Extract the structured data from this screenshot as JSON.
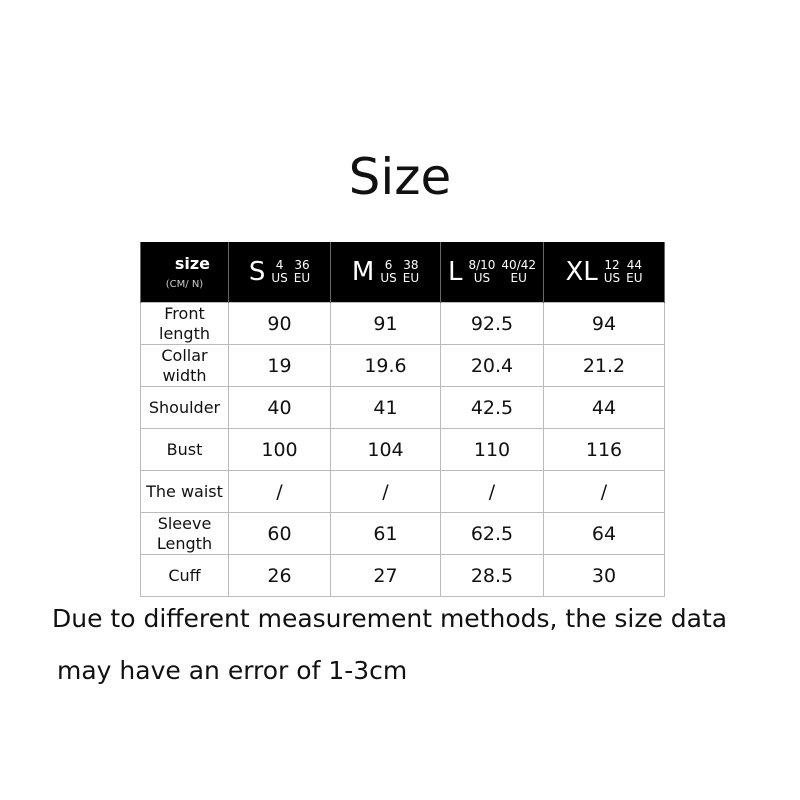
{
  "title": "Size",
  "header": {
    "label": "size",
    "unit": "(CM/ N)",
    "sizes": [
      {
        "name": "S",
        "us": "4",
        "eu": "36"
      },
      {
        "name": "M",
        "us": "6",
        "eu": "38"
      },
      {
        "name": "L",
        "us": "8/10",
        "eu": "40/42"
      },
      {
        "name": "XL",
        "us": "12",
        "eu": "44"
      }
    ],
    "us_label": "US",
    "eu_label": "EU"
  },
  "rows": [
    {
      "label": "Front length",
      "values": [
        "90",
        "91",
        "92.5",
        "94"
      ]
    },
    {
      "label": "Collar width",
      "values": [
        "19",
        "19.6",
        "20.4",
        "21.2"
      ]
    },
    {
      "label": "Shoulder",
      "values": [
        "40",
        "41",
        "42.5",
        "44"
      ]
    },
    {
      "label": "Bust",
      "values": [
        "100",
        "104",
        "110",
        "116"
      ]
    },
    {
      "label": "The waist",
      "values": [
        "/",
        "/",
        "/",
        "/"
      ]
    },
    {
      "label": "Sleeve Length",
      "values": [
        "60",
        "61",
        "62.5",
        "64"
      ]
    },
    {
      "label": "Cuff",
      "values": [
        "26",
        "27",
        "28.5",
        "30"
      ]
    }
  ],
  "note_line1": "Due to different measurement methods, the size data",
  "note_line2": "may have an error of 1-3cm"
}
